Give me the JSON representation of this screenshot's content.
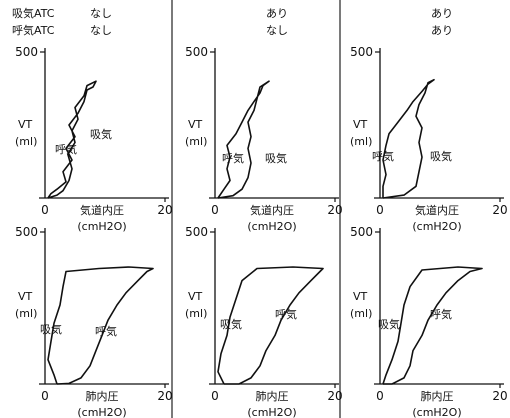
{
  "chart_data": [
    {
      "type": "line",
      "panel": "airway-none-none",
      "header": [
        {
          "label": "吸気ATC",
          "value": "なし"
        },
        {
          "label": "呼気ATC",
          "value": "なし"
        }
      ],
      "ylabel": [
        "VT",
        "(ml)"
      ],
      "xlabel": [
        "気道内圧",
        "(cmH2O)"
      ],
      "xlim": [
        0,
        20
      ],
      "ylim": [
        0,
        500
      ],
      "xticks": [
        "0",
        "20"
      ],
      "yticks": [
        "500"
      ],
      "annotations": [
        "吸気",
        "呼気"
      ],
      "series": [
        {
          "values": [
            [
              0.5,
              0
            ],
            [
              2,
              10
            ],
            [
              3,
              25
            ],
            [
              4,
              60
            ],
            [
              4.5,
              100
            ],
            [
              3.8,
              150
            ],
            [
              5,
              190
            ],
            [
              4.5,
              230
            ],
            [
              5.5,
              270
            ],
            [
              5,
              310
            ],
            [
              6.5,
              350
            ],
            [
              7,
              385
            ],
            [
              8.5,
              400
            ],
            [
              8,
              380
            ],
            [
              7,
              370
            ],
            [
              6.5,
              330
            ],
            [
              5.5,
              290
            ],
            [
              4,
              250
            ],
            [
              5,
              210
            ],
            [
              3.5,
              170
            ],
            [
              4.5,
              130
            ],
            [
              3,
              90
            ],
            [
              3.5,
              55
            ],
            [
              2,
              30
            ],
            [
              1,
              15
            ],
            [
              0.5,
              0
            ]
          ]
        }
      ]
    },
    {
      "type": "line",
      "panel": "airway-yes-none",
      "header": [
        {
          "value": "あり"
        },
        {
          "value": "なし"
        }
      ],
      "ylabel": [
        "VT",
        "(ml)"
      ],
      "xlabel": [
        "気道内圧",
        "(cmH2O)"
      ],
      "xlim": [
        0,
        20
      ],
      "ylim": [
        0,
        500
      ],
      "xticks": [
        "0",
        "20"
      ],
      "yticks": [
        "500"
      ],
      "annotations": [
        "呼気",
        "吸気"
      ],
      "series": [
        {
          "values": [
            [
              0.5,
              0
            ],
            [
              3,
              8
            ],
            [
              4.5,
              30
            ],
            [
              5.5,
              70
            ],
            [
              6,
              120
            ],
            [
              5.5,
              170
            ],
            [
              6,
              210
            ],
            [
              5.5,
              260
            ],
            [
              6.5,
              300
            ],
            [
              7,
              340
            ],
            [
              7.5,
              380
            ],
            [
              9,
              400
            ],
            [
              8,
              385
            ],
            [
              7.5,
              360
            ],
            [
              6.5,
              330
            ],
            [
              5.5,
              300
            ],
            [
              4.5,
              260
            ],
            [
              3.5,
              220
            ],
            [
              2,
              180
            ],
            [
              2.5,
              140
            ],
            [
              2,
              100
            ],
            [
              2.5,
              60
            ],
            [
              1.5,
              30
            ],
            [
              0.5,
              0
            ]
          ]
        }
      ]
    },
    {
      "type": "line",
      "panel": "airway-yes-yes",
      "header": [
        {
          "value": "あり"
        },
        {
          "value": "あり"
        }
      ],
      "ylabel": [
        "VT",
        "(ml)"
      ],
      "xlabel": [
        "気道内圧",
        "(cmH2O)"
      ],
      "xlim": [
        0,
        20
      ],
      "ylim": [
        0,
        500
      ],
      "xticks": [
        "0",
        "20"
      ],
      "yticks": [
        "500"
      ],
      "annotations": [
        "呼気",
        "吸気"
      ],
      "series": [
        {
          "values": [
            [
              0.5,
              0
            ],
            [
              4,
              10
            ],
            [
              6,
              40
            ],
            [
              6.5,
              90
            ],
            [
              7,
              140
            ],
            [
              6.5,
              190
            ],
            [
              7,
              240
            ],
            [
              6,
              280
            ],
            [
              6.5,
              320
            ],
            [
              7.5,
              360
            ],
            [
              8,
              395
            ],
            [
              9,
              405
            ],
            [
              8,
              390
            ],
            [
              7,
              365
            ],
            [
              5.5,
              330
            ],
            [
              4.5,
              300
            ],
            [
              3,
              260
            ],
            [
              1.5,
              220
            ],
            [
              1,
              180
            ],
            [
              0.5,
              130
            ],
            [
              1,
              80
            ],
            [
              0.5,
              40
            ],
            [
              0.5,
              0
            ]
          ]
        }
      ]
    },
    {
      "type": "line",
      "panel": "lung-none-none",
      "ylabel": [
        "VT",
        "(ml)"
      ],
      "xlabel": [
        "肺内圧",
        "(cmH2O)"
      ],
      "xlim": [
        0,
        20
      ],
      "ylim": [
        0,
        500
      ],
      "xticks": [
        "0",
        "20"
      ],
      "yticks": [
        "500"
      ],
      "annotations": [
        "吸気",
        "呼気"
      ],
      "series": [
        {
          "values": [
            [
              2,
              0
            ],
            [
              4,
              2
            ],
            [
              6,
              20
            ],
            [
              7.5,
              60
            ],
            [
              8.5,
              110
            ],
            [
              9.5,
              160
            ],
            [
              10.5,
              210
            ],
            [
              12,
              260
            ],
            [
              13.5,
              300
            ],
            [
              15.5,
              340
            ],
            [
              17,
              370
            ],
            [
              18,
              380
            ],
            [
              14,
              385
            ],
            [
              9,
              380
            ],
            [
              3.5,
              370
            ],
            [
              3,
              320
            ],
            [
              2.5,
              260
            ],
            [
              1.5,
              200
            ],
            [
              1,
              140
            ],
            [
              0.5,
              80
            ],
            [
              1.5,
              30
            ],
            [
              2,
              0
            ]
          ]
        }
      ]
    },
    {
      "type": "line",
      "panel": "lung-yes-none",
      "ylabel": [
        "VT",
        "(ml)"
      ],
      "xlabel": [
        "肺内圧",
        "(cmH2O)"
      ],
      "xlim": [
        0,
        20
      ],
      "ylim": [
        0,
        500
      ],
      "xticks": [
        "0",
        "20"
      ],
      "yticks": [
        "500"
      ],
      "annotations": [
        "吸気",
        "呼気"
      ],
      "series": [
        {
          "values": [
            [
              1.5,
              0
            ],
            [
              4,
              0
            ],
            [
              6,
              20
            ],
            [
              7.5,
              60
            ],
            [
              8.5,
              110
            ],
            [
              10,
              160
            ],
            [
              11,
              210
            ],
            [
              12.5,
              260
            ],
            [
              14,
              300
            ],
            [
              16,
              340
            ],
            [
              17.5,
              370
            ],
            [
              18,
              380
            ],
            [
              13,
              385
            ],
            [
              7,
              380
            ],
            [
              4.5,
              340
            ],
            [
              3.5,
              280
            ],
            [
              2.5,
              220
            ],
            [
              2,
              160
            ],
            [
              1,
              100
            ],
            [
              0.5,
              40
            ],
            [
              1.5,
              0
            ]
          ]
        }
      ]
    },
    {
      "type": "line",
      "panel": "lung-yes-yes",
      "ylabel": [
        "VT",
        "(ml)"
      ],
      "xlabel": [
        "肺内圧",
        "(cmH2O)"
      ],
      "xlim": [
        0,
        20
      ],
      "ylim": [
        0,
        500
      ],
      "xticks": [
        "0",
        "20"
      ],
      "yticks": [
        "500"
      ],
      "annotations": [
        "吸気",
        "呼気"
      ],
      "series": [
        {
          "values": [
            [
              0.5,
              0
            ],
            [
              2,
              0
            ],
            [
              4,
              20
            ],
            [
              5,
              60
            ],
            [
              5.5,
              110
            ],
            [
              7,
              160
            ],
            [
              8,
              210
            ],
            [
              9.5,
              260
            ],
            [
              11,
              300
            ],
            [
              13,
              340
            ],
            [
              15,
              370
            ],
            [
              17,
              380
            ],
            [
              13,
              385
            ],
            [
              7,
              375
            ],
            [
              5,
              320
            ],
            [
              4,
              260
            ],
            [
              3.5,
              200
            ],
            [
              3,
              140
            ],
            [
              2,
              80
            ],
            [
              1,
              30
            ],
            [
              0.5,
              0
            ]
          ]
        }
      ]
    }
  ]
}
